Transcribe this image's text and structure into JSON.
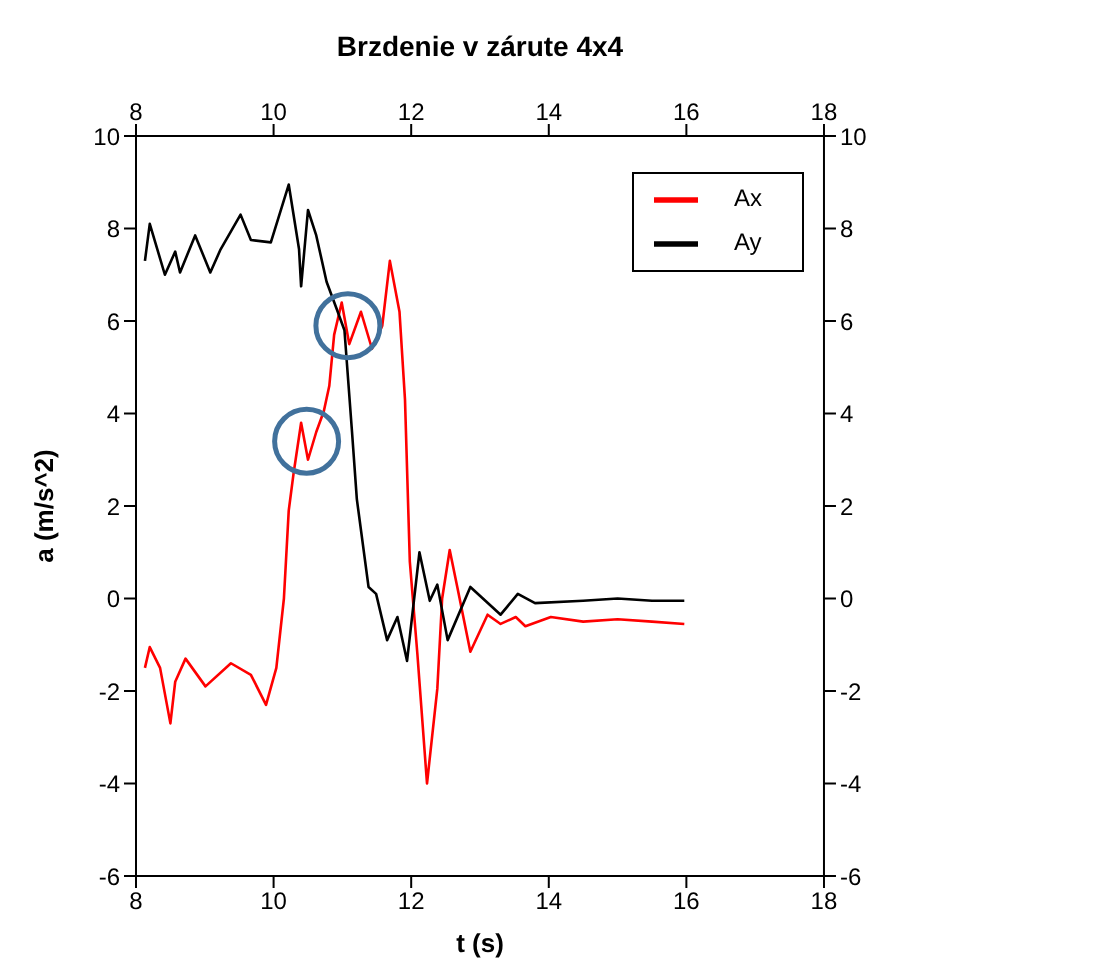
{
  "chart_data": {
    "type": "line",
    "title": "Brzdenie v zárute 4x4",
    "xlabel": "t (s)",
    "ylabel": "a (m/s^2)",
    "xlim": [
      8,
      18
    ],
    "xticks": [
      8,
      10,
      12,
      14,
      16,
      18
    ],
    "x2lim": [
      8,
      18
    ],
    "x2ticks": [
      8,
      10,
      12,
      14,
      16,
      18
    ],
    "ylim": [
      -6,
      10
    ],
    "yticks": [
      -6,
      -4,
      -2,
      0,
      2,
      4,
      6,
      8,
      10
    ],
    "y2lim": [
      -6,
      10
    ],
    "y2ticks": [
      -6,
      -4,
      -2,
      0,
      2,
      4,
      6,
      8,
      10
    ],
    "grid": false,
    "legend": "top right",
    "marker": "none",
    "line_style": "solid",
    "series": [
      {
        "name": "Ax",
        "color": "#ff0000",
        "x": [
          8.13,
          8.2,
          8.35,
          8.5,
          8.57,
          8.72,
          9.01,
          9.38,
          9.67,
          9.89,
          10.04,
          10.15,
          10.22,
          10.29,
          10.4,
          10.5,
          10.62,
          10.73,
          10.81,
          10.88,
          10.99,
          11.1,
          11.27,
          11.43,
          11.58,
          11.69,
          11.83,
          11.91,
          11.98,
          12.09,
          12.23,
          12.38,
          12.45,
          12.56,
          12.67,
          12.86,
          13.11,
          13.3,
          13.52,
          13.66,
          14.03,
          14.5,
          15,
          15.5,
          15.97
        ],
        "values": [
          -1.5,
          -1.05,
          -1.5,
          -2.7,
          -1.8,
          -1.3,
          -1.9,
          -1.4,
          -1.65,
          -2.3,
          -1.5,
          0,
          1.9,
          2.7,
          3.8,
          3,
          3.6,
          4.05,
          4.6,
          5.7,
          6.4,
          5.5,
          6.2,
          5.4,
          5.9,
          7.3,
          6.2,
          4.3,
          0.8,
          -1.2,
          -4,
          -1.95,
          0,
          1.05,
          0.25,
          -1.15,
          -0.35,
          -0.55,
          -0.4,
          -0.6,
          -0.4,
          -0.5,
          -0.45,
          -0.5,
          -0.55
        ]
      },
      {
        "name": "Ay",
        "color": "#000000",
        "x": [
          8.13,
          8.2,
          8.28,
          8.42,
          8.57,
          8.64,
          8.86,
          9.08,
          9.23,
          9.52,
          9.67,
          9.96,
          10.22,
          10.37,
          10.4,
          10.5,
          10.62,
          10.77,
          10.92,
          11.03,
          11.14,
          11.21,
          11.38,
          11.49,
          11.65,
          11.8,
          11.94,
          12.12,
          12.27,
          12.38,
          12.53,
          12.86,
          13.3,
          13.55,
          13.8,
          14.5,
          15,
          15.5,
          15.97
        ],
        "values": [
          7.3,
          8.1,
          7.7,
          7,
          7.5,
          7.05,
          7.85,
          7.05,
          7.55,
          8.3,
          7.75,
          7.7,
          8.95,
          7.55,
          6.75,
          8.4,
          7.85,
          6.85,
          6.25,
          5.8,
          3.6,
          2.15,
          0.25,
          0.1,
          -0.9,
          -0.4,
          -1.35,
          1,
          -0.05,
          0.3,
          -0.9,
          0.25,
          -0.35,
          0.1,
          -0.1,
          -0.05,
          0,
          -0.05,
          -0.05
        ]
      }
    ]
  }
}
